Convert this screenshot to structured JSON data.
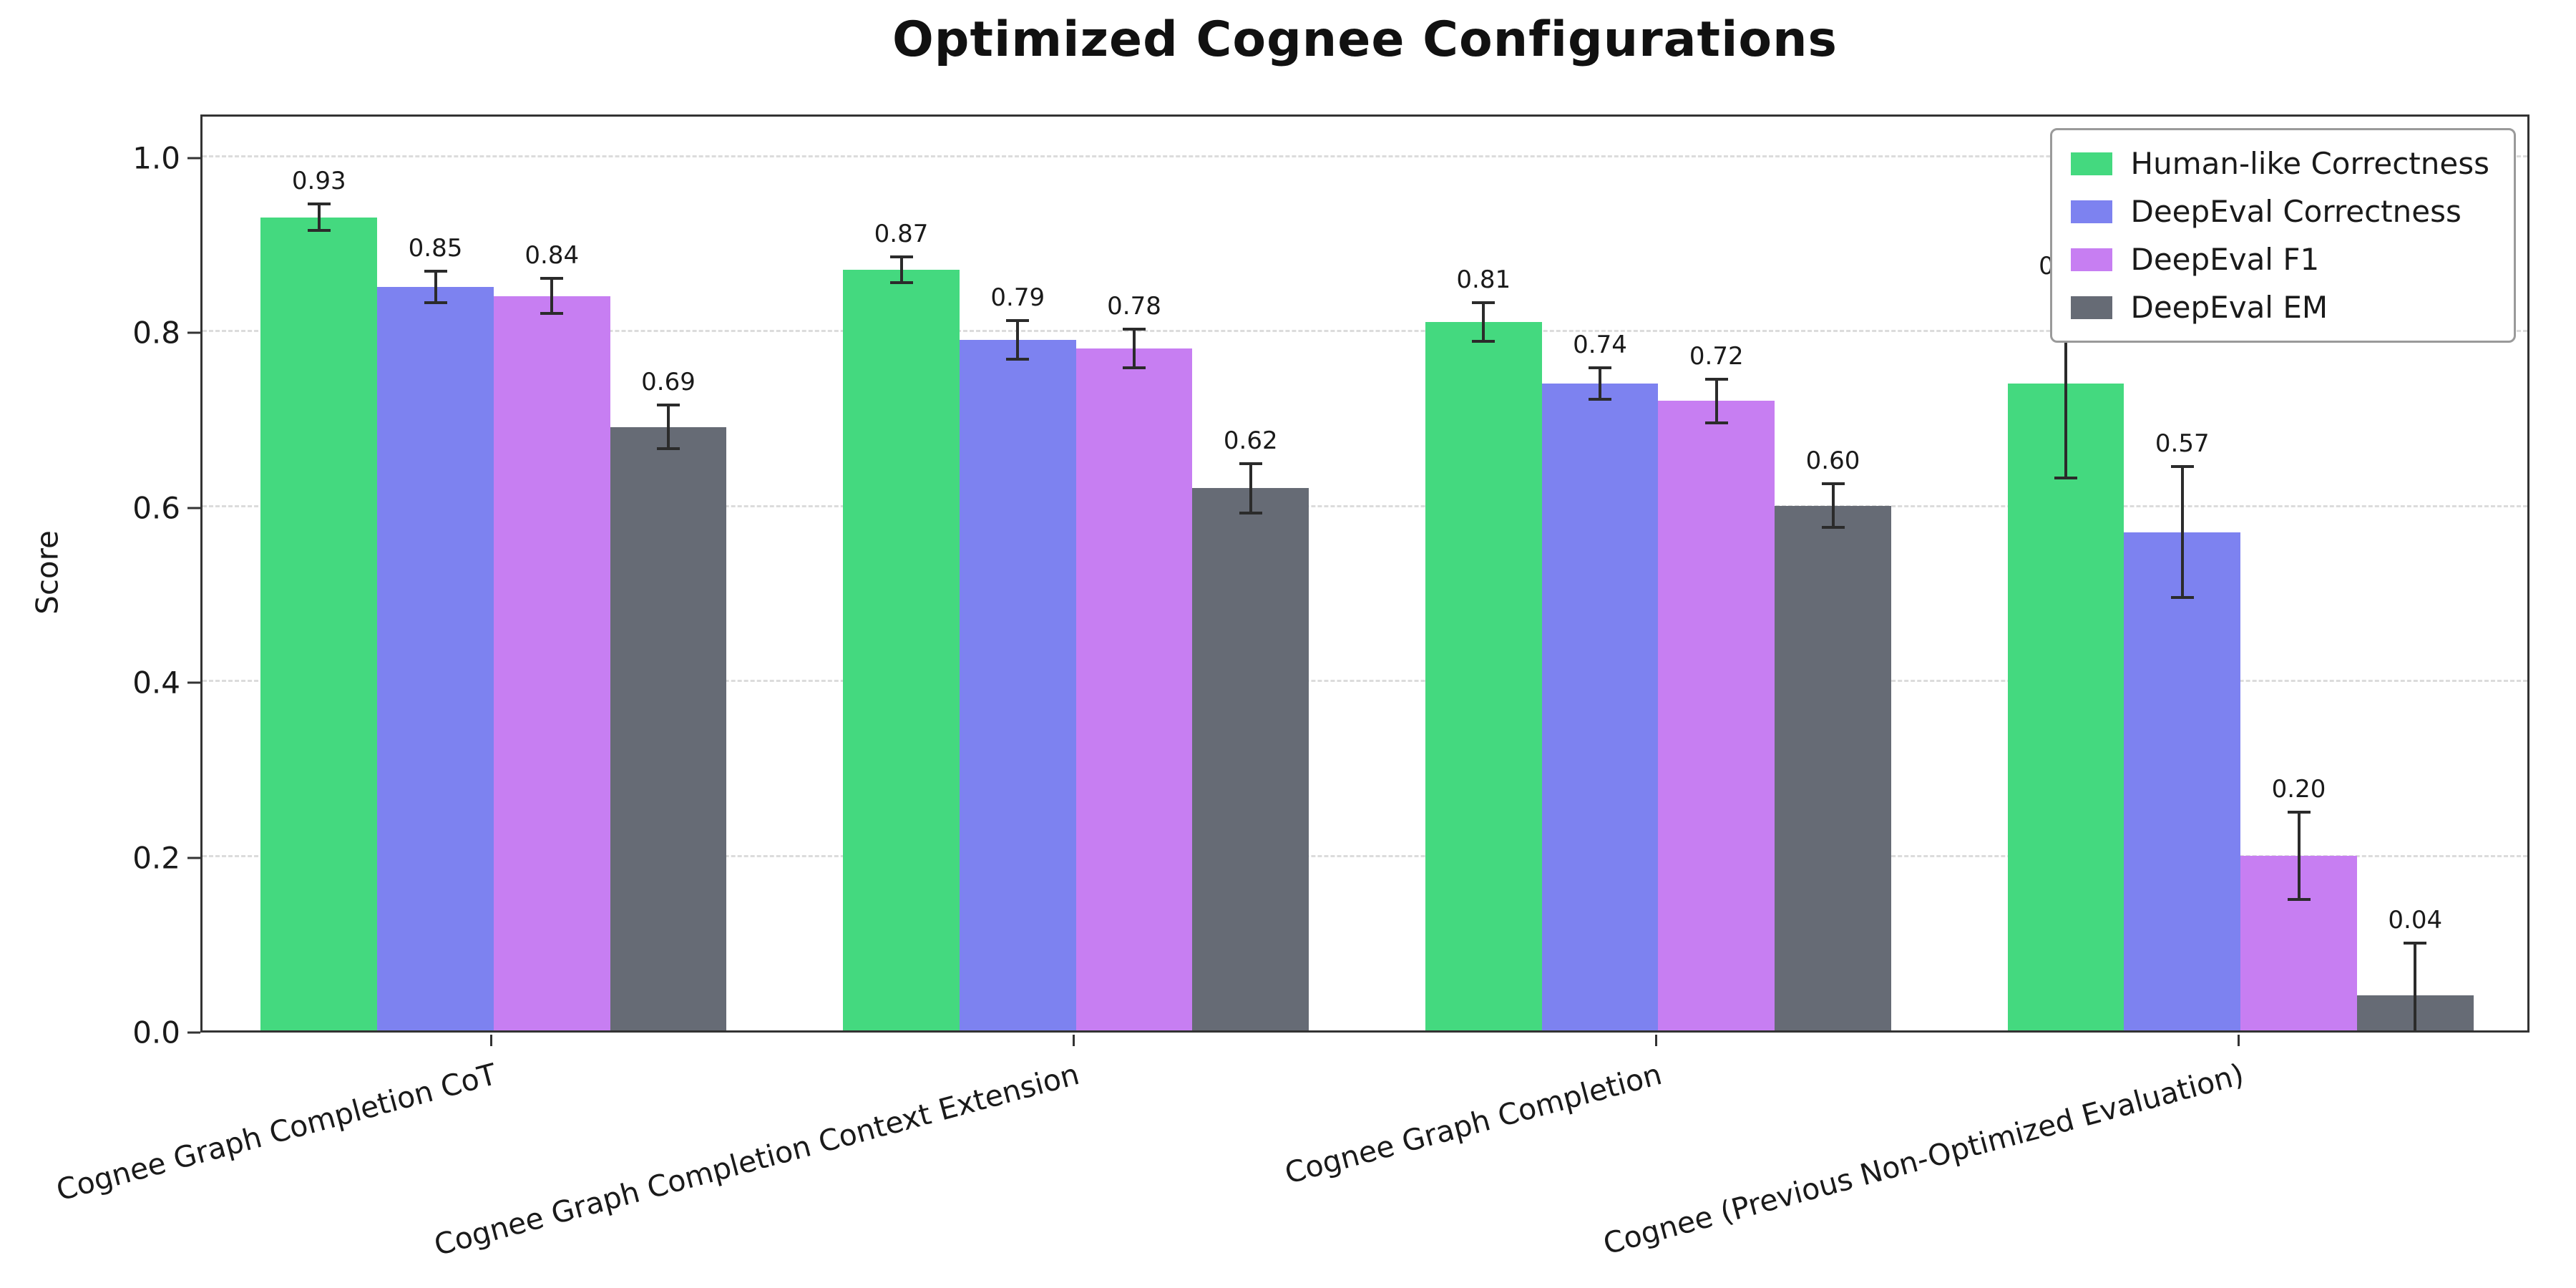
{
  "chart_data": {
    "type": "bar",
    "title": "Optimized Cognee Configurations",
    "xlabel": "",
    "ylabel": "Score",
    "ylim": [
      0,
      1.05
    ],
    "yticks": [
      0.0,
      0.2,
      0.4,
      0.6,
      0.8,
      1.0
    ],
    "grid": "horizontal-dashed",
    "legend_position": "upper-right",
    "error_bars": true,
    "error_bar_color": "#2b2b2b",
    "categories": [
      "Cognee Graph Completion CoT",
      "Cognee Graph Completion Context Extension",
      "Cognee Graph Completion",
      "Cognee (Previous Non-Optimized Evaluation)"
    ],
    "series": [
      {
        "name": "Human-like Correctness",
        "color": "#44d97f",
        "values": [
          0.93,
          0.87,
          0.81,
          0.74
        ],
        "errors": [
          0.015,
          0.015,
          0.022,
          0.108
        ]
      },
      {
        "name": "DeepEval Correctness",
        "color": "#7d82f0",
        "values": [
          0.85,
          0.79,
          0.74,
          0.57
        ],
        "errors": [
          0.018,
          0.022,
          0.018,
          0.075
        ]
      },
      {
        "name": "DeepEval F1",
        "color": "#c77ef2",
        "values": [
          0.84,
          0.78,
          0.72,
          0.2
        ],
        "errors": [
          0.02,
          0.022,
          0.025,
          0.05
        ]
      },
      {
        "name": "DeepEval EM",
        "color": "#666b75",
        "values": [
          0.69,
          0.62,
          0.6,
          0.04
        ],
        "errors": [
          0.025,
          0.028,
          0.025,
          0.06
        ]
      }
    ],
    "value_labels": [
      [
        "0.93",
        "0.85",
        "0.84",
        "0.69"
      ],
      [
        "0.87",
        "0.79",
        "0.78",
        "0.62"
      ],
      [
        "0.81",
        "0.74",
        "0.72",
        "0.60"
      ],
      [
        "0.74",
        "0.57",
        "0.20",
        "0.04"
      ]
    ]
  }
}
